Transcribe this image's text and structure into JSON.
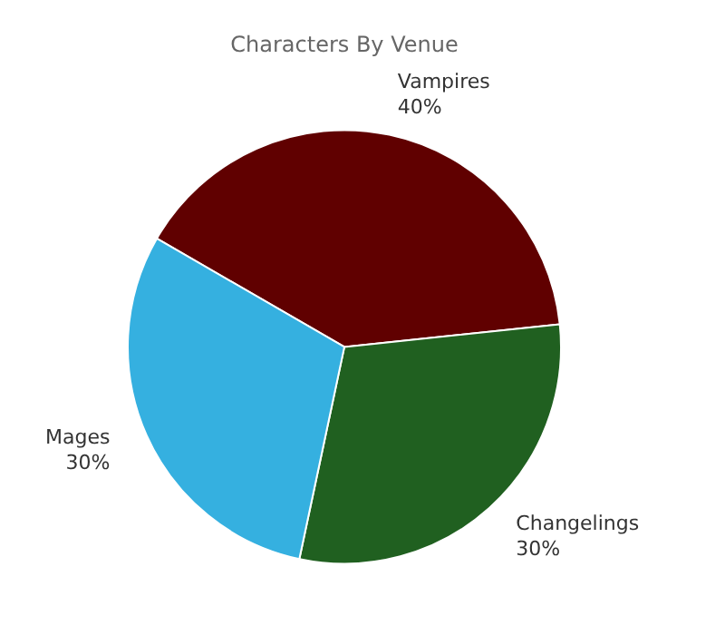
{
  "chart_data": {
    "type": "pie",
    "title": "Characters By Venue",
    "categories": [
      "Vampires",
      "Changelings",
      "Mages"
    ],
    "values": [
      40,
      30,
      30
    ],
    "colors": [
      "#600000",
      "#206020",
      "#35b0e0"
    ],
    "value_labels": [
      "40%",
      "30%",
      "30%"
    ],
    "legend": false
  }
}
